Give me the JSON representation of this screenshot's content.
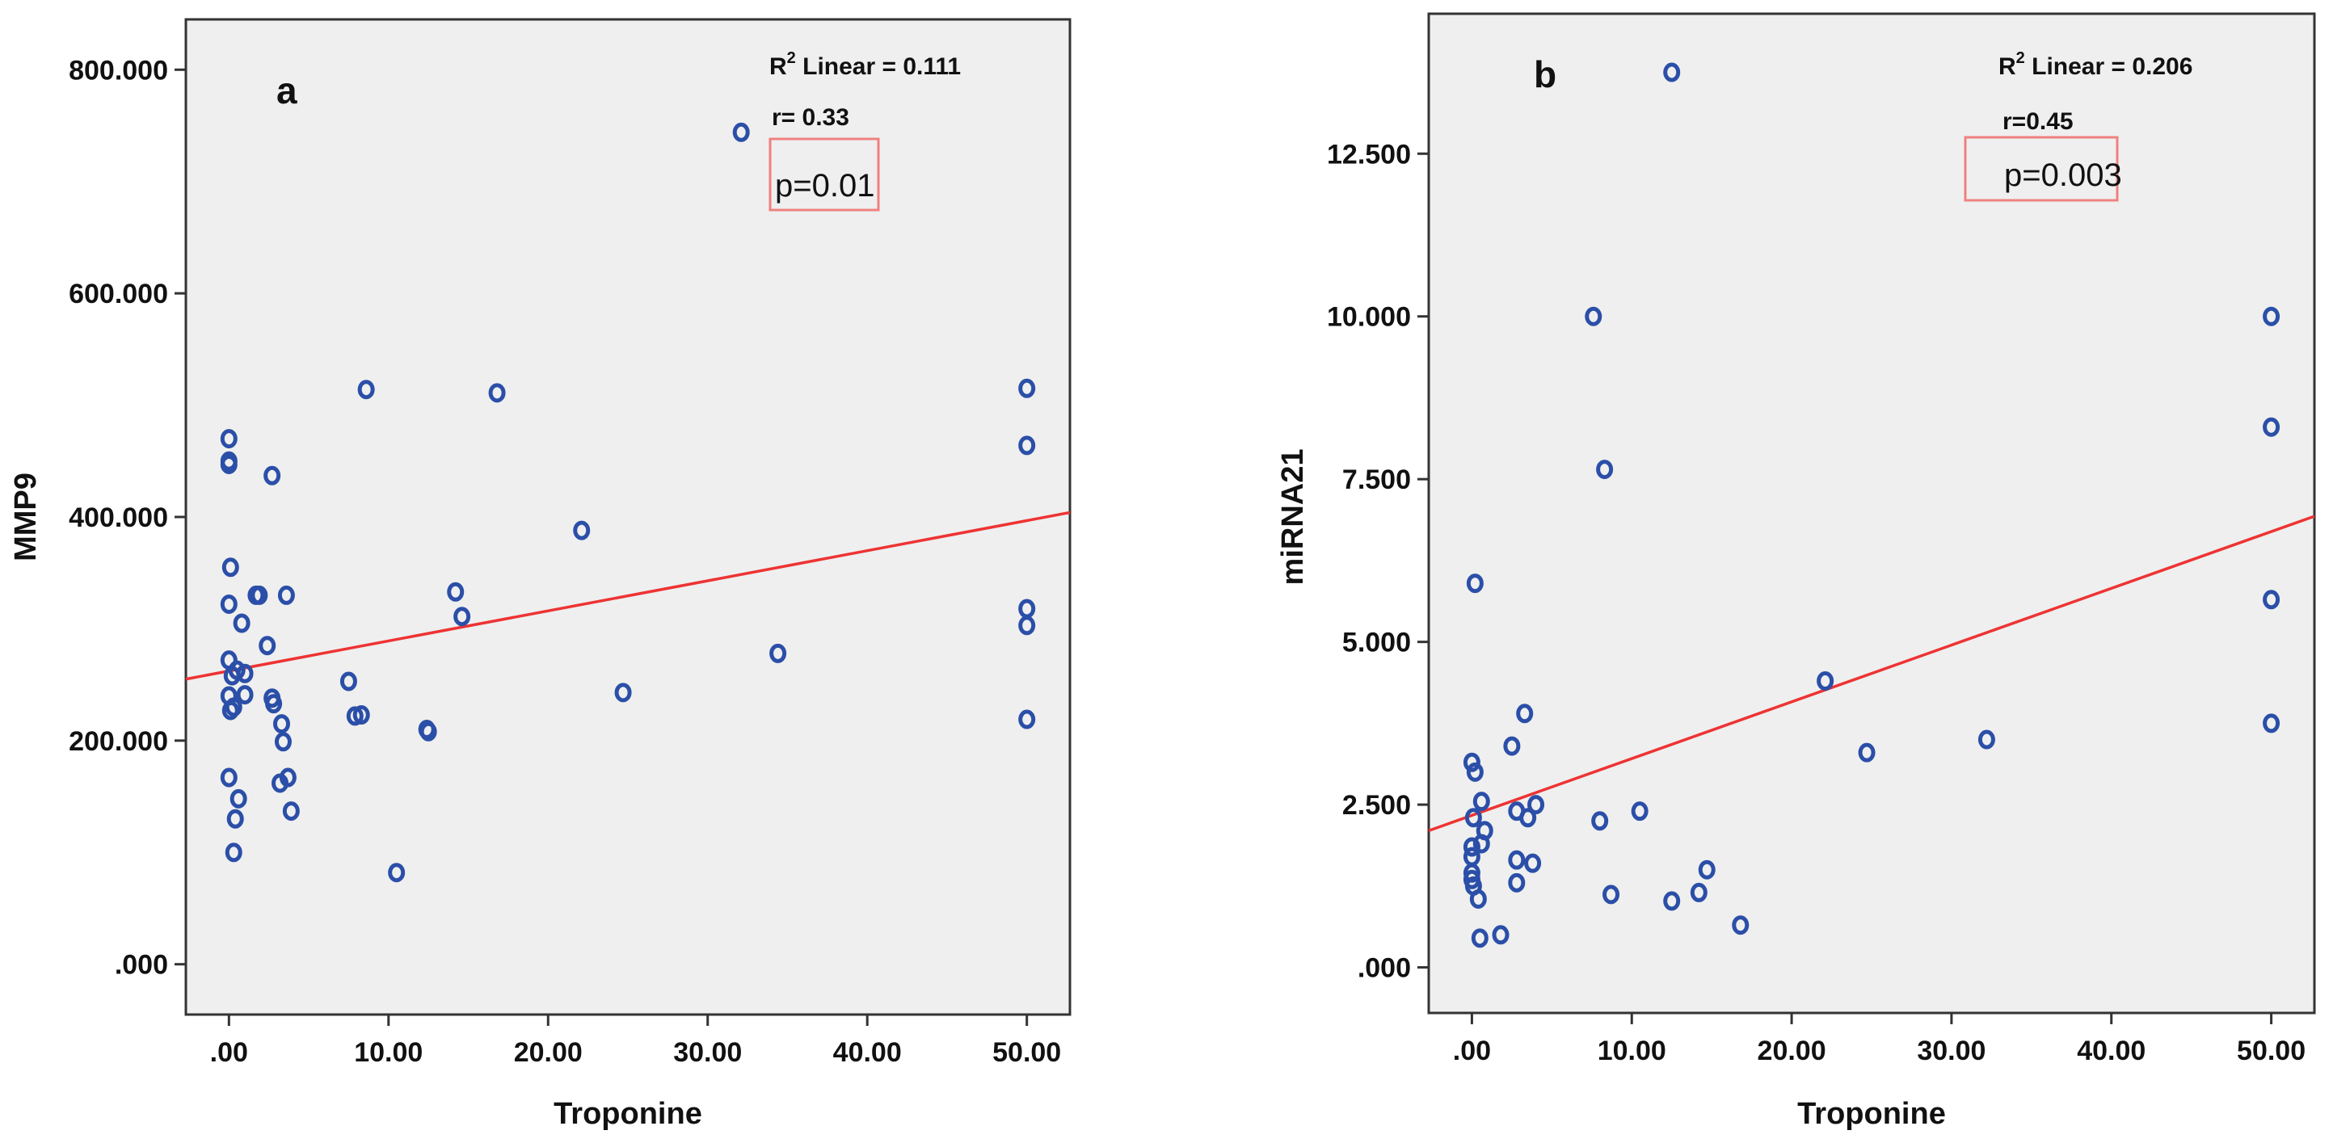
{
  "chart_data": [
    {
      "type": "scatter",
      "panel": "a",
      "xlabel": "Troponine",
      "ylabel": "MMP9",
      "xlim": [
        -2.7,
        52.7
      ],
      "ylim": [
        -45,
        845
      ],
      "xticks": [
        0,
        10,
        20,
        30,
        40,
        50
      ],
      "xtick_labels": [
        ".00",
        "10.00",
        "20.00",
        "30.00",
        "40.00",
        "50.00"
      ],
      "yticks": [
        0,
        200,
        400,
        600,
        800
      ],
      "ytick_labels": [
        ".000",
        "200.000",
        "400.000",
        "600.000",
        "800.000"
      ],
      "annotation": {
        "r2_prefix": "R",
        "r2_sup": "2",
        "r2_text": " Linear = 0.111",
        "r_text": "r= 0.33",
        "p_text": "p=0.01"
      },
      "fit_line": {
        "x": [
          -2.7,
          52.7
        ],
        "y": [
          255,
          404
        ]
      },
      "colors": {
        "marker": "#2b4fa8",
        "fit": "#ee3333",
        "pbox": "#f08080",
        "plot_bg": "#efefef"
      },
      "points": [
        {
          "x": 0.0,
          "y": 470
        },
        {
          "x": 0.0,
          "y": 450
        },
        {
          "x": 0.0,
          "y": 447
        },
        {
          "x": 0.1,
          "y": 355
        },
        {
          "x": 0.0,
          "y": 322
        },
        {
          "x": 0.0,
          "y": 272
        },
        {
          "x": 0.2,
          "y": 258
        },
        {
          "x": 0.0,
          "y": 240
        },
        {
          "x": 0.3,
          "y": 230
        },
        {
          "x": 0.1,
          "y": 227
        },
        {
          "x": 0.0,
          "y": 167
        },
        {
          "x": 0.3,
          "y": 100
        },
        {
          "x": 0.5,
          "y": 263
        },
        {
          "x": 0.6,
          "y": 148
        },
        {
          "x": 0.4,
          "y": 130
        },
        {
          "x": 0.8,
          "y": 305
        },
        {
          "x": 1.0,
          "y": 260
        },
        {
          "x": 1.0,
          "y": 241
        },
        {
          "x": 1.7,
          "y": 330
        },
        {
          "x": 1.9,
          "y": 330
        },
        {
          "x": 2.4,
          "y": 285
        },
        {
          "x": 2.7,
          "y": 437
        },
        {
          "x": 2.7,
          "y": 238
        },
        {
          "x": 2.8,
          "y": 233
        },
        {
          "x": 3.3,
          "y": 215
        },
        {
          "x": 3.4,
          "y": 199
        },
        {
          "x": 3.2,
          "y": 162
        },
        {
          "x": 3.6,
          "y": 330
        },
        {
          "x": 3.7,
          "y": 167
        },
        {
          "x": 3.9,
          "y": 137
        },
        {
          "x": 7.5,
          "y": 253
        },
        {
          "x": 7.9,
          "y": 222
        },
        {
          "x": 8.3,
          "y": 223
        },
        {
          "x": 8.6,
          "y": 514
        },
        {
          "x": 10.5,
          "y": 82
        },
        {
          "x": 12.4,
          "y": 210
        },
        {
          "x": 12.5,
          "y": 208
        },
        {
          "x": 14.2,
          "y": 333
        },
        {
          "x": 14.6,
          "y": 311
        },
        {
          "x": 16.8,
          "y": 511
        },
        {
          "x": 22.1,
          "y": 388
        },
        {
          "x": 24.7,
          "y": 243
        },
        {
          "x": 32.1,
          "y": 744
        },
        {
          "x": 34.4,
          "y": 278
        },
        {
          "x": 50.0,
          "y": 515
        },
        {
          "x": 50.0,
          "y": 464
        },
        {
          "x": 50.0,
          "y": 318
        },
        {
          "x": 50.0,
          "y": 303
        },
        {
          "x": 50.0,
          "y": 219
        }
      ]
    },
    {
      "type": "scatter",
      "panel": "b",
      "xlabel": "Troponine",
      "ylabel": "miRNA21",
      "xlim": [
        -2.7,
        52.7
      ],
      "ylim": [
        -0.7,
        14.65
      ],
      "xticks": [
        0,
        10,
        20,
        30,
        40,
        50
      ],
      "xtick_labels": [
        ".00",
        "10.00",
        "20.00",
        "30.00",
        "40.00",
        "50.00"
      ],
      "yticks": [
        0,
        2.5,
        5,
        7.5,
        10,
        12.5
      ],
      "ytick_labels": [
        ".000",
        "2.500",
        "5.000",
        "7.500",
        "10.000",
        "12.500"
      ],
      "annotation": {
        "r2_prefix": "R",
        "r2_sup": "2",
        "r2_text": " Linear = 0.206",
        "r_text": "r=0.45",
        "p_text": "p=0.003"
      },
      "fit_line": {
        "x": [
          -2.7,
          52.7
        ],
        "y": [
          2.1,
          6.93
        ]
      },
      "colors": {
        "marker": "#2b4fa8",
        "fit": "#ee3333",
        "pbox": "#f08080",
        "plot_bg": "#efefef"
      },
      "points": [
        {
          "x": 0.2,
          "y": 5.9
        },
        {
          "x": 0.0,
          "y": 3.15
        },
        {
          "x": 0.2,
          "y": 3.0
        },
        {
          "x": 0.1,
          "y": 2.3
        },
        {
          "x": 0.0,
          "y": 1.85
        },
        {
          "x": 0.0,
          "y": 1.7
        },
        {
          "x": 0.0,
          "y": 1.45
        },
        {
          "x": 0.0,
          "y": 1.35
        },
        {
          "x": 0.1,
          "y": 1.25
        },
        {
          "x": 0.4,
          "y": 1.05
        },
        {
          "x": 0.5,
          "y": 0.45
        },
        {
          "x": 0.6,
          "y": 2.55
        },
        {
          "x": 0.6,
          "y": 1.9
        },
        {
          "x": 0.8,
          "y": 2.1
        },
        {
          "x": 1.8,
          "y": 0.5
        },
        {
          "x": 2.5,
          "y": 3.4
        },
        {
          "x": 2.8,
          "y": 2.4
        },
        {
          "x": 2.8,
          "y": 1.65
        },
        {
          "x": 2.8,
          "y": 1.3
        },
        {
          "x": 3.3,
          "y": 3.9
        },
        {
          "x": 3.5,
          "y": 2.3
        },
        {
          "x": 3.8,
          "y": 1.6
        },
        {
          "x": 4.0,
          "y": 2.5
        },
        {
          "x": 7.6,
          "y": 10.0
        },
        {
          "x": 8.0,
          "y": 2.25
        },
        {
          "x": 8.3,
          "y": 7.65
        },
        {
          "x": 8.7,
          "y": 1.12
        },
        {
          "x": 10.5,
          "y": 2.4
        },
        {
          "x": 12.5,
          "y": 13.75
        },
        {
          "x": 12.5,
          "y": 1.02
        },
        {
          "x": 14.2,
          "y": 1.15
        },
        {
          "x": 14.7,
          "y": 1.5
        },
        {
          "x": 16.8,
          "y": 0.65
        },
        {
          "x": 22.1,
          "y": 4.4
        },
        {
          "x": 24.7,
          "y": 3.3
        },
        {
          "x": 32.2,
          "y": 3.5
        },
        {
          "x": 50.0,
          "y": 10.0
        },
        {
          "x": 50.0,
          "y": 8.3
        },
        {
          "x": 50.0,
          "y": 5.65
        },
        {
          "x": 50.0,
          "y": 3.75
        }
      ]
    }
  ]
}
